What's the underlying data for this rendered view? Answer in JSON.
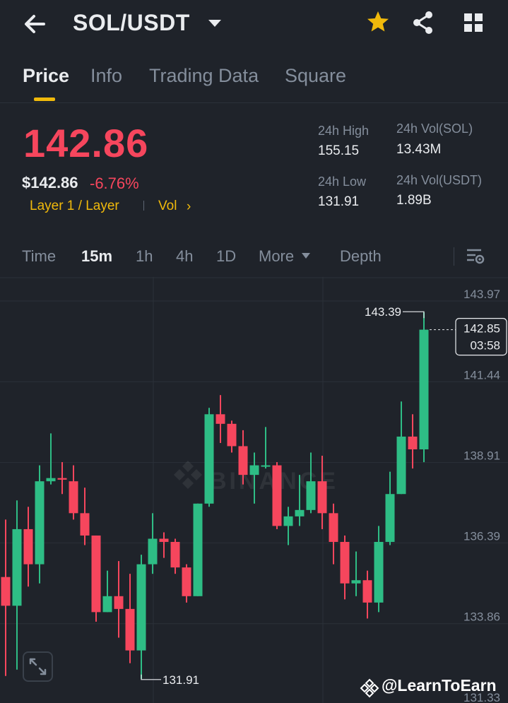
{
  "header": {
    "pair": "SOL/USDT"
  },
  "tabs": [
    {
      "label": "Price",
      "active": true
    },
    {
      "label": "Info",
      "active": false
    },
    {
      "label": "Trading Data",
      "active": false
    },
    {
      "label": "Square",
      "active": false
    }
  ],
  "ticker": {
    "last_price": "142.86",
    "usd_price": "$142.86",
    "change_pct": "-6.76%",
    "tag": "Layer 1 / Layer",
    "vol_tag": "Vol",
    "vol_arrow": "›"
  },
  "stats": {
    "high_label": "24h High",
    "high_value": "155.15",
    "vol_sol_label": "24h Vol(SOL)",
    "vol_sol_value": "13.43M",
    "low_label": "24h Low",
    "low_value": "131.91",
    "vol_usdt_label": "24h Vol(USDT)",
    "vol_usdt_value": "1.89B"
  },
  "timeframes": [
    {
      "label": "Time",
      "active": false
    },
    {
      "label": "15m",
      "active": true
    },
    {
      "label": "1h",
      "active": false
    },
    {
      "label": "4h",
      "active": false
    },
    {
      "label": "1D",
      "active": false
    },
    {
      "label": "More",
      "active": false
    },
    {
      "label": "Depth",
      "active": false
    }
  ],
  "colors": {
    "up": "#2ebd85",
    "down": "#f6465d",
    "accent": "#f0b90b",
    "background": "#1f232a"
  },
  "chart_data": {
    "type": "candlestick",
    "y_ticks": [
      "143.97",
      "141.44",
      "138.91",
      "136.39",
      "133.86",
      "131.33"
    ],
    "ylim": [
      131.33,
      143.97
    ],
    "high_marker": "143.39",
    "low_marker": "131.91",
    "current_price": "142.85",
    "countdown": "03:58",
    "watermark": "BINANCE",
    "candles": [
      {
        "o": 135.1,
        "h": 136.9,
        "l": 132.0,
        "c": 134.2
      },
      {
        "o": 134.2,
        "h": 137.5,
        "l": 132.2,
        "c": 136.6
      },
      {
        "o": 136.6,
        "h": 137.3,
        "l": 134.8,
        "c": 135.5
      },
      {
        "o": 135.5,
        "h": 138.6,
        "l": 134.9,
        "c": 138.1
      },
      {
        "o": 138.1,
        "h": 139.6,
        "l": 138.0,
        "c": 138.2
      },
      {
        "o": 138.2,
        "h": 138.7,
        "l": 137.7,
        "c": 138.15
      },
      {
        "o": 138.1,
        "h": 138.6,
        "l": 136.9,
        "c": 137.1
      },
      {
        "o": 137.1,
        "h": 137.9,
        "l": 136.1,
        "c": 136.4
      },
      {
        "o": 136.4,
        "h": 136.4,
        "l": 133.7,
        "c": 134.0
      },
      {
        "o": 134.0,
        "h": 135.3,
        "l": 134.0,
        "c": 134.5
      },
      {
        "o": 134.5,
        "h": 135.6,
        "l": 133.2,
        "c": 134.1
      },
      {
        "o": 134.1,
        "h": 135.2,
        "l": 132.4,
        "c": 132.8
      },
      {
        "o": 132.8,
        "h": 135.8,
        "l": 131.91,
        "c": 135.5
      },
      {
        "o": 135.5,
        "h": 137.1,
        "l": 135.2,
        "c": 136.3
      },
      {
        "o": 136.3,
        "h": 136.5,
        "l": 135.7,
        "c": 136.2
      },
      {
        "o": 136.2,
        "h": 136.3,
        "l": 135.2,
        "c": 135.4
      },
      {
        "o": 135.4,
        "h": 135.5,
        "l": 134.3,
        "c": 134.5
      },
      {
        "o": 134.5,
        "h": 137.4,
        "l": 134.5,
        "c": 137.4
      },
      {
        "o": 137.4,
        "h": 140.4,
        "l": 137.3,
        "c": 140.2
      },
      {
        "o": 140.2,
        "h": 140.8,
        "l": 139.3,
        "c": 139.9
      },
      {
        "o": 139.9,
        "h": 140.0,
        "l": 139.0,
        "c": 139.2
      },
      {
        "o": 139.2,
        "h": 139.7,
        "l": 138.0,
        "c": 138.3
      },
      {
        "o": 138.3,
        "h": 139.0,
        "l": 137.4,
        "c": 138.6
      },
      {
        "o": 138.6,
        "h": 139.8,
        "l": 138.5,
        "c": 138.6
      },
      {
        "o": 138.6,
        "h": 138.7,
        "l": 136.6,
        "c": 136.7
      },
      {
        "o": 136.7,
        "h": 137.3,
        "l": 136.1,
        "c": 137.0
      },
      {
        "o": 137.0,
        "h": 138.3,
        "l": 136.7,
        "c": 137.2
      },
      {
        "o": 137.2,
        "h": 139.0,
        "l": 137.1,
        "c": 138.1
      },
      {
        "o": 138.1,
        "h": 138.9,
        "l": 136.6,
        "c": 137.1
      },
      {
        "o": 137.1,
        "h": 137.4,
        "l": 135.5,
        "c": 136.2
      },
      {
        "o": 136.2,
        "h": 136.4,
        "l": 134.4,
        "c": 134.9
      },
      {
        "o": 134.9,
        "h": 135.9,
        "l": 134.5,
        "c": 135.0
      },
      {
        "o": 135.0,
        "h": 135.3,
        "l": 133.8,
        "c": 134.3
      },
      {
        "o": 134.3,
        "h": 136.7,
        "l": 134.0,
        "c": 136.2
      },
      {
        "o": 136.2,
        "h": 138.4,
        "l": 136.1,
        "c": 137.7
      },
      {
        "o": 137.7,
        "h": 140.6,
        "l": 137.7,
        "c": 139.5
      },
      {
        "o": 139.5,
        "h": 140.2,
        "l": 138.5,
        "c": 139.1
      },
      {
        "o": 139.1,
        "h": 143.39,
        "l": 138.7,
        "c": 142.85
      }
    ]
  },
  "watermark_text": "@LearnToEarn"
}
